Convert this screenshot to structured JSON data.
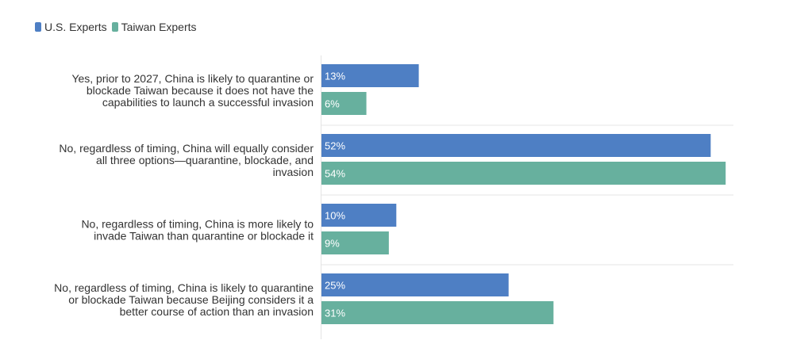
{
  "chart_data": {
    "type": "bar",
    "orientation": "horizontal",
    "categories": [
      [
        "Yes, prior to 2027, China is likely to quarantine or",
        "blockade Taiwan because it does not have the",
        "capabilities to launch a successful invasion"
      ],
      [
        "No, regardless of timing, China will equally consider",
        "all three options—quarantine, blockade, and",
        "invasion"
      ],
      [
        "No, regardless of timing, China is more likely to",
        "invade Taiwan than quarantine or blockade it"
      ],
      [
        "No, regardless of timing, China is likely to quarantine",
        "or blockade Taiwan because Beijing considers it a",
        "better course of action than an invasion"
      ]
    ],
    "series": [
      {
        "name": "U.S. Experts",
        "color": "#4e7fc4",
        "values": [
          13,
          52,
          10,
          25
        ],
        "labels": [
          "13%",
          "52%",
          "10%",
          "25%"
        ]
      },
      {
        "name": "Taiwan Experts",
        "color": "#67b09e",
        "values": [
          6,
          54,
          9,
          31
        ],
        "labels": [
          "6%",
          "54%",
          "9%",
          "31%"
        ]
      }
    ],
    "xlim": [
      0,
      55
    ],
    "legend_position": "top-left",
    "grid": false
  },
  "legend": {
    "us_label": "U.S. Experts",
    "tw_label": "Taiwan Experts",
    "us_color": "#4e7fc4",
    "tw_color": "#67b09e"
  }
}
